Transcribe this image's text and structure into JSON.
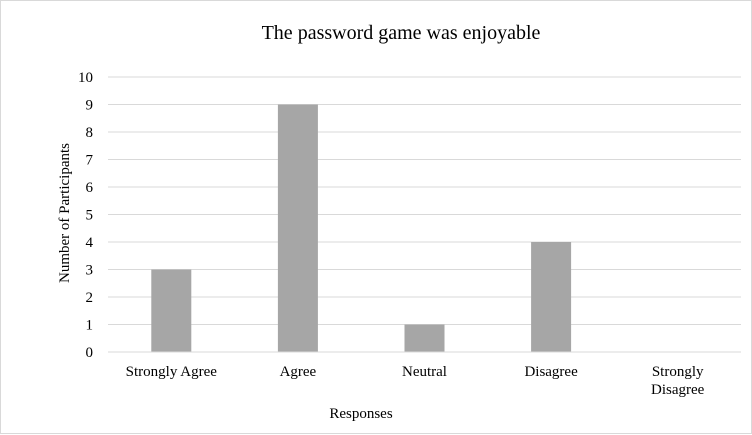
{
  "chart_data": {
    "type": "bar",
    "title": "The password game was enjoyable",
    "xlabel": "Responses",
    "ylabel": "Number of Participants",
    "categories": [
      "Strongly Agree",
      "Agree",
      "Neutral",
      "Disagree",
      "Strongly Disagree"
    ],
    "values": [
      3,
      9,
      1,
      4,
      0
    ],
    "ylim": [
      0,
      10
    ],
    "yticks": [
      0,
      1,
      2,
      3,
      4,
      5,
      6,
      7,
      8,
      9,
      10
    ],
    "grid": true,
    "legend": "none",
    "bar_color": "#a6a6a6",
    "grid_color": "#d9d9d9"
  }
}
